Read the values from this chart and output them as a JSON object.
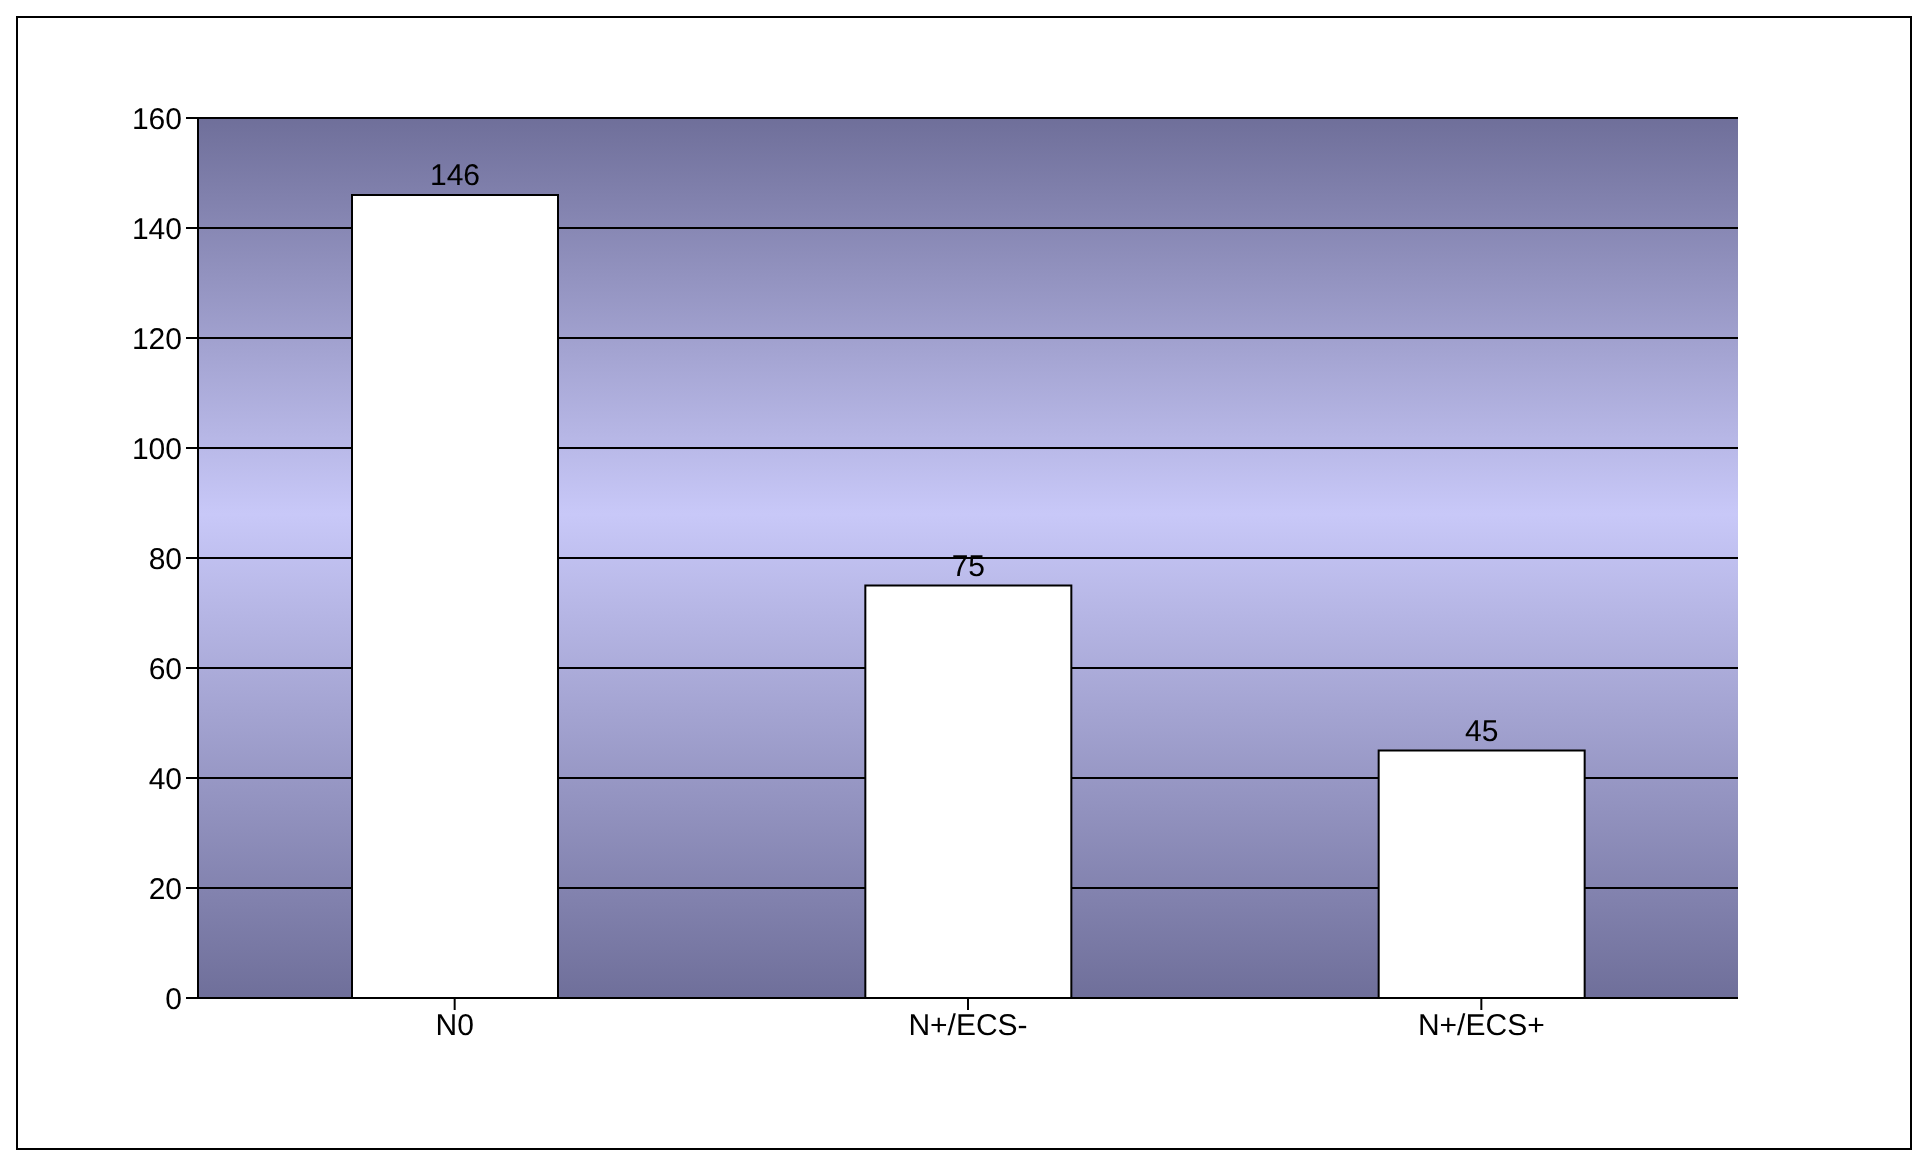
{
  "chart_data": {
    "type": "bar",
    "categories": [
      "N0",
      "N+/ECS-",
      "N+/ECS+"
    ],
    "values": [
      146,
      75,
      45
    ],
    "color": "#ffffff",
    "ylim": [
      0,
      160
    ],
    "yticks": [
      0,
      20,
      40,
      60,
      80,
      100,
      120,
      140,
      160
    ],
    "grid": "y",
    "data_labels": true
  }
}
